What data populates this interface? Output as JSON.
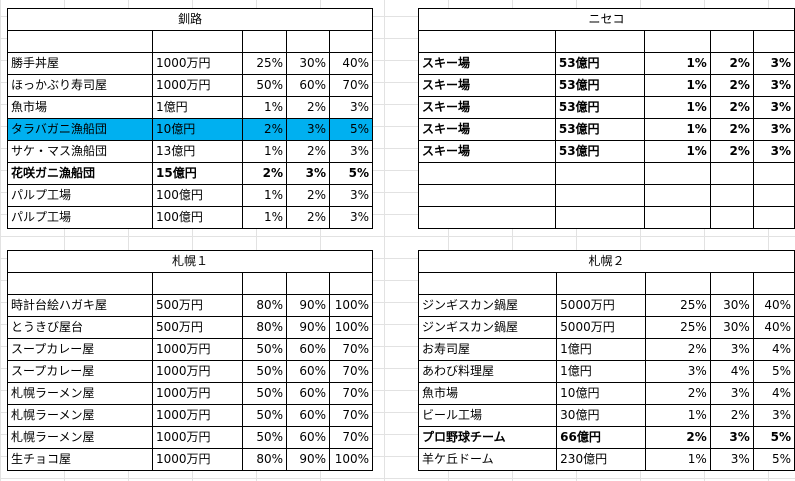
{
  "blocks": [
    {
      "title": "釧路",
      "rows": [
        {
          "name": "勝手丼屋",
          "price": "1000万円",
          "p1": "25%",
          "p2": "30%",
          "p3": "40%"
        },
        {
          "name": "ほっかぶり寿司屋",
          "price": "1000万円",
          "p1": "50%",
          "p2": "60%",
          "p3": "70%"
        },
        {
          "name": "魚市場",
          "price": "1億円",
          "p1": "1%",
          "p2": "2%",
          "p3": "3%"
        },
        {
          "name": "タラバガニ漁船団",
          "price": "10億円",
          "p1": "2%",
          "p2": "3%",
          "p3": "5%",
          "highlight": true
        },
        {
          "name": "サケ・マス漁船団",
          "price": "13億円",
          "p1": "1%",
          "p2": "2%",
          "p3": "3%"
        },
        {
          "name": "花咲ガニ漁船団",
          "price": "15億円",
          "p1": "2%",
          "p2": "3%",
          "p3": "5%",
          "bold": true
        },
        {
          "name": "パルプ工場",
          "price": "100億円",
          "p1": "1%",
          "p2": "2%",
          "p3": "3%"
        },
        {
          "name": "パルプ工場",
          "price": "100億円",
          "p1": "1%",
          "p2": "2%",
          "p3": "3%"
        }
      ]
    },
    {
      "title": "ニセコ",
      "rows": [
        {
          "name": "スキー場",
          "price": "53億円",
          "p1": "1%",
          "p2": "2%",
          "p3": "3%",
          "bold": true
        },
        {
          "name": "スキー場",
          "price": "53億円",
          "p1": "1%",
          "p2": "2%",
          "p3": "3%",
          "bold": true
        },
        {
          "name": "スキー場",
          "price": "53億円",
          "p1": "1%",
          "p2": "2%",
          "p3": "3%",
          "bold": true
        },
        {
          "name": "スキー場",
          "price": "53億円",
          "p1": "1%",
          "p2": "2%",
          "p3": "3%",
          "bold": true
        },
        {
          "name": "スキー場",
          "price": "53億円",
          "p1": "1%",
          "p2": "2%",
          "p3": "3%",
          "bold": true
        },
        {
          "name": "",
          "price": "",
          "p1": "",
          "p2": "",
          "p3": ""
        },
        {
          "name": "",
          "price": "",
          "p1": "",
          "p2": "",
          "p3": ""
        },
        {
          "name": "",
          "price": "",
          "p1": "",
          "p2": "",
          "p3": ""
        }
      ]
    },
    {
      "title": "札幌１",
      "rows": [
        {
          "name": "時計台絵ハガキ屋",
          "price": "500万円",
          "p1": "80%",
          "p2": "90%",
          "p3": "100%"
        },
        {
          "name": "とうきび屋台",
          "price": "500万円",
          "p1": "80%",
          "p2": "90%",
          "p3": "100%"
        },
        {
          "name": "スープカレー屋",
          "price": "1000万円",
          "p1": "50%",
          "p2": "60%",
          "p3": "70%"
        },
        {
          "name": "スープカレー屋",
          "price": "1000万円",
          "p1": "50%",
          "p2": "60%",
          "p3": "70%"
        },
        {
          "name": "札幌ラーメン屋",
          "price": "1000万円",
          "p1": "50%",
          "p2": "60%",
          "p3": "70%"
        },
        {
          "name": "札幌ラーメン屋",
          "price": "1000万円",
          "p1": "50%",
          "p2": "60%",
          "p3": "70%"
        },
        {
          "name": "札幌ラーメン屋",
          "price": "1000万円",
          "p1": "50%",
          "p2": "60%",
          "p3": "70%"
        },
        {
          "name": "生チョコ屋",
          "price": "1000万円",
          "p1": "80%",
          "p2": "90%",
          "p3": "100%"
        }
      ]
    },
    {
      "title": "札幌２",
      "rows": [
        {
          "name": "ジンギスカン鍋屋",
          "price": "5000万円",
          "p1": "25%",
          "p2": "30%",
          "p3": "40%"
        },
        {
          "name": "ジンギスカン鍋屋",
          "price": "5000万円",
          "p1": "25%",
          "p2": "30%",
          "p3": "40%"
        },
        {
          "name": "お寿司屋",
          "price": "1億円",
          "p1": "2%",
          "p2": "3%",
          "p3": "4%"
        },
        {
          "name": "あわび料理屋",
          "price": "1億円",
          "p1": "3%",
          "p2": "4%",
          "p3": "5%"
        },
        {
          "name": "魚市場",
          "price": "10億円",
          "p1": "2%",
          "p2": "3%",
          "p3": "4%"
        },
        {
          "name": "ビール工場",
          "price": "30億円",
          "p1": "1%",
          "p2": "2%",
          "p3": "3%"
        },
        {
          "name": "プロ野球チーム",
          "price": "66億円",
          "p1": "2%",
          "p2": "3%",
          "p3": "5%",
          "bold": true
        },
        {
          "name": "羊ケ丘ドーム",
          "price": "230億円",
          "p1": "1%",
          "p2": "3%",
          "p3": "5%"
        }
      ]
    }
  ],
  "colors": {
    "highlight": "#00b0f0",
    "border": "#000000",
    "gridline": "#e2e2e2"
  }
}
